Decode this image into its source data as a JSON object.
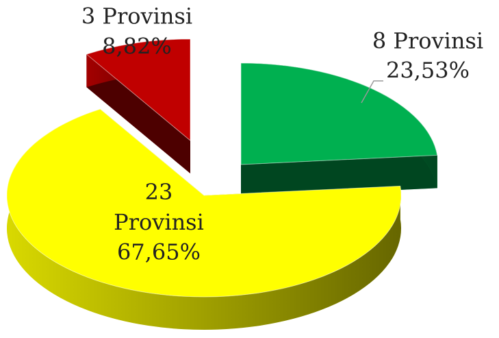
{
  "chart_data": {
    "type": "pie",
    "categories": [
      "8 Provinsi",
      "23 Provinsi",
      "3 Provinsi"
    ],
    "values": [
      23.53,
      67.65,
      8.82
    ],
    "value_labels": [
      "23,53%",
      "67,65%",
      "8,82%"
    ],
    "colors": [
      "#00b050",
      "#ffff00",
      "#c00000"
    ]
  }
}
